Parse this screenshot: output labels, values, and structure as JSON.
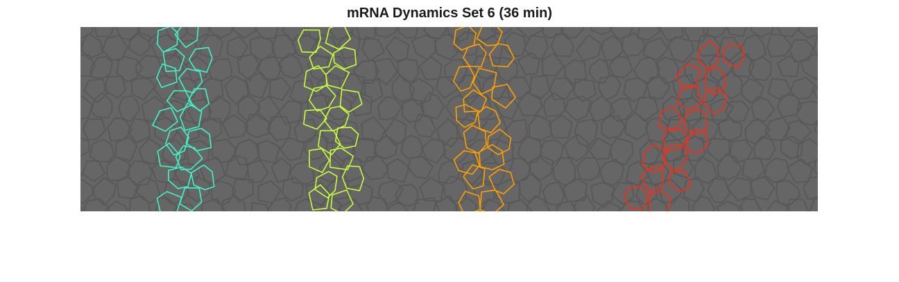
{
  "figure": {
    "title": "mRNA Dynamics Set 6 (36 min)"
  },
  "colors": {
    "background": "#ffffff",
    "tissue_background": "#666666",
    "cell_membrane": "#595959",
    "stripes": [
      "#40f5c8",
      "#c8ff3c",
      "#ffa000",
      "#ff2a10"
    ]
  }
}
